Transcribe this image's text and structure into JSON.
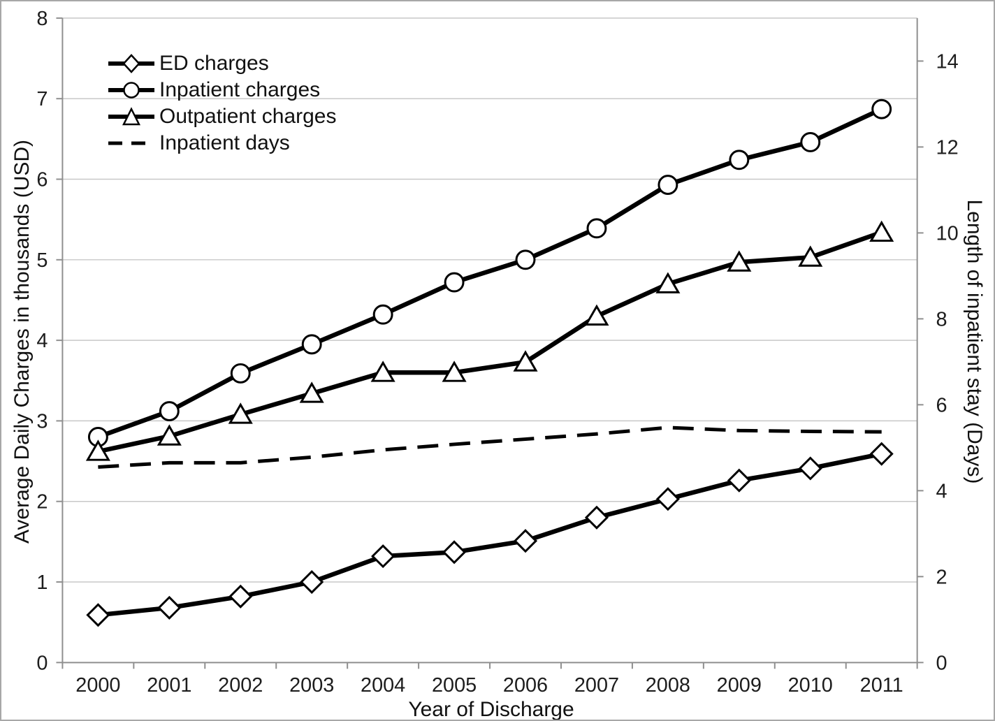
{
  "figure": {
    "background": "#ffffff",
    "border_color": "#a8a8a8"
  },
  "chart_data": {
    "type": "line",
    "title": "",
    "xlabel": "Year of Discharge",
    "ylabel_left": "Average Daily Charges in thousands (USD)",
    "ylabel_right": "Length of inpatient stay (Days)",
    "categories": [
      "2000",
      "2001",
      "2002",
      "2003",
      "2004",
      "2005",
      "2006",
      "2007",
      "2008",
      "2009",
      "2010",
      "2011"
    ],
    "axes": {
      "left": {
        "min": 0,
        "max": 8,
        "ticks": [
          0,
          1,
          2,
          3,
          4,
          5,
          6,
          7,
          8
        ]
      },
      "right": {
        "min": 0,
        "max": 15,
        "ticks": [
          0,
          2,
          4,
          6,
          8,
          10,
          12,
          14
        ]
      }
    },
    "grid": "horizontal",
    "legend_position": "top-left-inside",
    "series": [
      {
        "name": "ED charges",
        "axis": "left",
        "marker": "diamond",
        "line": "solid",
        "values": [
          0.59,
          0.68,
          0.82,
          1.0,
          1.32,
          1.37,
          1.51,
          1.8,
          2.03,
          2.26,
          2.41,
          2.59
        ]
      },
      {
        "name": "Inpatient charges",
        "axis": "left",
        "marker": "circle",
        "line": "solid",
        "values": [
          2.8,
          3.12,
          3.59,
          3.95,
          4.32,
          4.72,
          5.0,
          5.39,
          5.93,
          6.24,
          6.46,
          6.87
        ]
      },
      {
        "name": "Outpatient charges",
        "axis": "left",
        "marker": "triangle",
        "line": "solid",
        "values": [
          2.62,
          2.81,
          3.08,
          3.34,
          3.6,
          3.6,
          3.73,
          4.3,
          4.7,
          4.97,
          5.03,
          5.34
        ]
      },
      {
        "name": "Inpatient days",
        "axis": "right",
        "marker": "none",
        "line": "dashed",
        "values": [
          4.55,
          4.65,
          4.65,
          4.78,
          4.95,
          5.08,
          5.2,
          5.32,
          5.47,
          5.4,
          5.38,
          5.37
        ]
      }
    ],
    "colors": {
      "series": "#000000",
      "grid": "#c8c8c8",
      "axis": "#8f8f8f",
      "text": "#1d1d1d"
    }
  }
}
